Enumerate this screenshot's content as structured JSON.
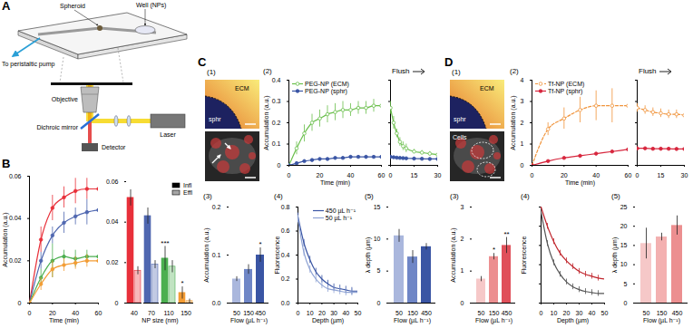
{
  "panel_labels": [
    "A",
    "B",
    "C",
    "D"
  ],
  "diagram": {
    "labels": {
      "spheroid": "Spheroid",
      "well": "Well (NPs)",
      "pump": "To peristaltic pump",
      "objective": "Objective",
      "mirror": "Dichroic mirror",
      "laser": "Laser",
      "detector": "Detector"
    }
  },
  "images": [
    {
      "title": "(1)",
      "top_labels": [
        "ECM",
        "sphr"
      ]
    },
    {
      "title": "(1)",
      "top_labels": [
        "ECM",
        "sphr"
      ],
      "bottom_labels": [
        "Cells"
      ]
    }
  ],
  "chart_data": [
    {
      "type": "line",
      "xlabel": "Time (min)",
      "ylabel": "Accumulation (a.u.)",
      "x": [
        0,
        10,
        20,
        30,
        40,
        50,
        60
      ],
      "xlim": [
        0,
        60
      ],
      "xticks": [
        0,
        20,
        40,
        60
      ],
      "ylim": [
        0,
        0.06
      ],
      "yticks": [
        0,
        0.02,
        0.04,
        0.06
      ],
      "series": [
        {
          "color": "#e8303a",
          "marker": "circle",
          "line_style": "solid",
          "values": [
            0,
            0.03,
            0.045,
            0.05,
            0.053,
            0.054,
            0.054
          ],
          "errors": [
            0,
            0.006,
            0.006,
            0.005,
            0.006,
            0.005,
            0.005
          ]
        },
        {
          "color": "#4f67b0",
          "marker": "circle",
          "line_style": "solid",
          "values": [
            0,
            0.02,
            0.032,
            0.038,
            0.041,
            0.043,
            0.044
          ],
          "errors": [
            0,
            0.004,
            0.004,
            0.005,
            0.004,
            0.006,
            0.005
          ]
        },
        {
          "color": "#4caf50",
          "marker": "circle",
          "line_style": "solid",
          "values": [
            0,
            0.012,
            0.02,
            0.022,
            0.021,
            0.022,
            0.022
          ],
          "errors": [
            0,
            0.004,
            0.008,
            0.003,
            0.004,
            0.003,
            0.004
          ]
        },
        {
          "color": "#f39c34",
          "marker": "circle",
          "line_style": "solid",
          "values": [
            0,
            0.009,
            0.016,
            0.018,
            0.019,
            0.02,
            0.02
          ],
          "errors": [
            0,
            0.003,
            0.004,
            0.003,
            0.003,
            0.003,
            0.003
          ]
        }
      ]
    },
    {
      "type": "bar",
      "xlabel": "NP size (nm)",
      "categories": [
        "40",
        "70",
        "110",
        "150"
      ],
      "colors": [
        "#e8303a",
        "#4f67b0",
        "#4caf50",
        "#f39c34"
      ],
      "ylim": [
        0,
        0.06
      ],
      "yticks": [
        0,
        0.02,
        0.04,
        0.06
      ],
      "legend": "top-right",
      "series": [
        {
          "name": "Infl",
          "color": "#000000",
          "values": [
            0.052,
            0.043,
            0.022,
            0.005
          ],
          "errors": [
            0.004,
            0.004,
            0.006,
            0.003
          ]
        },
        {
          "name": "Effl",
          "color": "#000000",
          "values": [
            0.016,
            0.019,
            0.018,
            0.001
          ],
          "errors": [
            0.002,
            0.002,
            0.003,
            0.001
          ]
        }
      ],
      "annotations": [
        {
          "category": "110",
          "series": "Infl",
          "text": "***"
        },
        {
          "category": "150",
          "series": "Infl",
          "text": "*"
        }
      ]
    },
    {
      "type": "line",
      "title": "(2)",
      "xlabel": "Time (min)",
      "ylabel": "Accumulation (a.u.)",
      "x": [
        0,
        5,
        10,
        15,
        20,
        25,
        30,
        35,
        40,
        45,
        50,
        55,
        60
      ],
      "xlim": [
        0,
        60
      ],
      "xticks": [
        0,
        20,
        40,
        60
      ],
      "ylim": [
        0,
        0.4
      ],
      "yticks": [
        0,
        0.1,
        0.2,
        0.3,
        0.4
      ],
      "legend": "top-left",
      "series": [
        {
          "name": "PEG-NP (ECM)",
          "color": "#6abf4b",
          "marker": "circle-open",
          "line_style": "solid",
          "values": [
            0,
            0.08,
            0.15,
            0.2,
            0.22,
            0.24,
            0.25,
            0.26,
            0.26,
            0.27,
            0.27,
            0.28,
            0.28
          ],
          "errors": [
            0,
            0.03,
            0.04,
            0.04,
            0.04,
            0.04,
            0.04,
            0.04,
            0.03,
            0.03,
            0.03,
            0.03,
            0.03
          ]
        },
        {
          "name": "PEG-NP (sphr)",
          "color": "#3a55a4",
          "marker": "circle",
          "line_style": "solid",
          "values": [
            0,
            0.01,
            0.02,
            0.025,
            0.03,
            0.03,
            0.035,
            0.035,
            0.04,
            0.04,
            0.04,
            0.04,
            0.04
          ],
          "errors": [
            0,
            0.005,
            0.005,
            0.005,
            0.005,
            0.005,
            0.005,
            0.005,
            0.005,
            0.005,
            0.005,
            0.005,
            0.005
          ]
        }
      ]
    },
    {
      "type": "line",
      "title": "Flush",
      "tick_labels": "x",
      "x": [
        0,
        2,
        4,
        6,
        8,
        10,
        15,
        20,
        25,
        30
      ],
      "xlim": [
        0,
        30
      ],
      "xticks": [
        0,
        15,
        30
      ],
      "ylim": [
        0,
        0.4
      ],
      "yticks": [
        0,
        0.1,
        0.2,
        0.3,
        0.4
      ],
      "series": [
        {
          "color": "#6abf4b",
          "marker": "circle-open",
          "line_style": "solid",
          "values": [
            0.27,
            0.2,
            0.15,
            0.11,
            0.09,
            0.08,
            0.065,
            0.06,
            0.055,
            0.05
          ],
          "errors": [
            0.03,
            0.03,
            0.02,
            0.02,
            0.02,
            0.02,
            0.01,
            0.01,
            0.01,
            0.01
          ]
        },
        {
          "color": "#3a55a4",
          "marker": "circle",
          "line_style": "solid",
          "values": [
            0.04,
            0.038,
            0.036,
            0.035,
            0.034,
            0.033,
            0.032,
            0.031,
            0.03,
            0.03
          ],
          "errors": [
            0.005,
            0.005,
            0.005,
            0.005,
            0.005,
            0.005,
            0.005,
            0.005,
            0.005,
            0.005
          ]
        }
      ]
    },
    {
      "type": "bar",
      "title": "(3)",
      "xlabel": "Flow (µL h⁻¹)",
      "ylabel": "Accumulation (a.u.)",
      "categories": [
        "50",
        "150",
        "450"
      ],
      "values": [
        0.05,
        0.07,
        0.1
      ],
      "errors": [
        0.005,
        0.01,
        0.015
      ],
      "colors": [
        "#aab7dd",
        "#6f86c6",
        "#3a55a4"
      ],
      "ylim": [
        0,
        0.2
      ],
      "yticks": [
        {
          "value": 0,
          "label": "0.0"
        },
        0.1,
        0.2
      ],
      "annotations": [
        {
          "category": "450",
          "text": "*"
        }
      ]
    },
    {
      "type": "line",
      "title": "(4)",
      "xlabel": "Depth (µm)",
      "ylabel": "Fluorescence",
      "x": [
        0,
        5,
        10,
        15,
        20,
        25,
        30,
        35,
        40,
        45,
        50
      ],
      "xlim": [
        0,
        50
      ],
      "xticks": [
        0,
        10,
        20,
        30,
        40,
        50
      ],
      "ylim": [
        0,
        0.8
      ],
      "yticks": [
        {
          "value": 0,
          "label": "0.0"
        },
        0.2,
        0.4,
        0.6,
        0.8
      ],
      "legend": "top-right",
      "series": [
        {
          "name": "450 µL h⁻¹",
          "color": "#3a55a4",
          "line_style": "solid",
          "values": [
            0.72,
            0.5,
            0.36,
            0.26,
            0.2,
            0.16,
            0.13,
            0.12,
            0.11,
            0.1,
            0.1
          ],
          "errors": [
            0.03,
            0.03,
            0.03,
            0.03,
            0.03,
            0.03,
            0.03,
            0.03,
            0.03,
            0.03,
            0.03
          ]
        },
        {
          "name": "50 µL h⁻¹",
          "color": "#8fa3d4",
          "line_style": "solid",
          "values": [
            0.7,
            0.42,
            0.28,
            0.2,
            0.15,
            0.12,
            0.11,
            0.1,
            0.09,
            0.09,
            0.09
          ],
          "errors": [
            0.03,
            0.03,
            0.03,
            0.03,
            0.03,
            0.03,
            0.03,
            0.03,
            0.03,
            0.03,
            0.03
          ]
        }
      ]
    },
    {
      "type": "bar",
      "title": "(5)",
      "xlabel": "Flow (µL h⁻¹)",
      "ylabel": "λ depth (µm)",
      "categories": [
        "50",
        "150",
        "450"
      ],
      "values": [
        10.5,
        7.2,
        8.8
      ],
      "errors": [
        1,
        1,
        0.5
      ],
      "colors": [
        "#aab7dd",
        "#6f86c6",
        "#3a55a4"
      ],
      "ylim": [
        0,
        15
      ],
      "yticks": [
        0,
        5,
        10,
        15
      ]
    },
    {
      "type": "line",
      "title": "(2)",
      "xlabel": "Time (min)",
      "ylabel": "Accumulation (a.u.)",
      "x": [
        0,
        10,
        20,
        30,
        40,
        50,
        60
      ],
      "xlim": [
        0,
        60
      ],
      "xticks": [
        0,
        20,
        40,
        60
      ],
      "ylim": [
        0,
        4
      ],
      "yticks": [
        0,
        1,
        2,
        3,
        4
      ],
      "legend": "top-left",
      "series": [
        {
          "name": "Tf-NP (ECM)",
          "color": "#f0933a",
          "marker": "circle-open",
          "line_style": "dashed",
          "values": [
            0,
            1.7,
            2.2,
            2.6,
            2.8,
            2.8,
            2.8
          ],
          "errors": [
            0,
            0.3,
            0.5,
            0.6,
            0.7,
            0.8,
            0.8
          ]
        },
        {
          "name": "Tf-NP (sphr)",
          "color": "#d7263d",
          "marker": "circle",
          "line_style": "solid",
          "values": [
            0,
            0.2,
            0.35,
            0.45,
            0.55,
            0.65,
            0.75
          ],
          "errors": [
            0,
            0.05,
            0.05,
            0.05,
            0.05,
            0.06,
            0.08
          ]
        }
      ]
    },
    {
      "type": "line",
      "title": "Flush",
      "tick_labels": "x",
      "x": [
        0,
        5,
        10,
        15,
        20,
        25,
        30
      ],
      "xlim": [
        0,
        30
      ],
      "xticks": [
        0,
        15,
        30
      ],
      "ylim": [
        0,
        4
      ],
      "yticks": [
        0,
        1,
        2,
        3,
        4
      ],
      "series": [
        {
          "color": "#f0933a",
          "marker": "circle-open",
          "line_style": "dashed",
          "values": [
            2.7,
            2.6,
            2.5,
            2.45,
            2.4,
            2.4,
            2.35
          ],
          "errors": [
            0.2,
            0.2,
            0.2,
            0.2,
            0.2,
            0.2,
            0.2
          ]
        },
        {
          "color": "#d7263d",
          "marker": "circle",
          "line_style": "solid",
          "values": [
            0.8,
            0.8,
            0.78,
            0.78,
            0.78,
            0.77,
            0.77
          ],
          "errors": [
            0.05,
            0.05,
            0.05,
            0.05,
            0.05,
            0.05,
            0.05
          ]
        }
      ]
    },
    {
      "type": "bar",
      "title": "(3)",
      "xlabel": "Flow (µL h⁻¹)",
      "ylabel": "Accumulation (a.u.)",
      "categories": [
        "50",
        "150",
        "450"
      ],
      "values": [
        0.75,
        1.45,
        1.8
      ],
      "errors": [
        0.08,
        0.1,
        0.25
      ],
      "colors": [
        "#f6c8c8",
        "#ec8f90",
        "#e0505a"
      ],
      "ylim": [
        0,
        3
      ],
      "yticks": [
        0,
        1,
        2,
        3
      ],
      "annotations": [
        {
          "category": "150",
          "text": "*"
        },
        {
          "category": "450",
          "text": "**"
        }
      ]
    },
    {
      "type": "line",
      "title": "(4)",
      "xlabel": "Depth (µm)",
      "ylabel": "Fluorescence",
      "tick_labels": "x",
      "x": [
        0,
        5,
        10,
        15,
        20,
        25,
        30,
        35,
        40,
        45,
        50
      ],
      "xlim": [
        0,
        50
      ],
      "xticks": [
        0,
        10,
        20,
        30,
        40,
        50
      ],
      "ylim": [
        0,
        1
      ],
      "yticks": [
        0,
        0.2,
        0.4,
        0.6,
        0.8,
        1
      ],
      "series": [
        {
          "color": "#c0262d",
          "line_style": "solid",
          "values": [
            1,
            0.8,
            0.64,
            0.52,
            0.44,
            0.38,
            0.33,
            0.3,
            0.28,
            0.26,
            0.25
          ],
          "errors": [
            0.03,
            0.03,
            0.03,
            0.03,
            0.03,
            0.03,
            0.03,
            0.03,
            0.03,
            0.03,
            0.03
          ]
        },
        {
          "color": "#555555",
          "line_style": "solid",
          "values": [
            0.95,
            0.62,
            0.42,
            0.3,
            0.22,
            0.17,
            0.14,
            0.12,
            0.11,
            0.1,
            0.1
          ],
          "errors": [
            0.03,
            0.03,
            0.03,
            0.03,
            0.03,
            0.03,
            0.03,
            0.03,
            0.03,
            0.03,
            0.03
          ]
        }
      ]
    },
    {
      "type": "bar",
      "title": "(5)",
      "xlabel": "Flow (µL h⁻¹)",
      "ylabel": "λ depth (µm)",
      "categories": [
        "50",
        "150",
        "450"
      ],
      "values": [
        15.5,
        17.2,
        20.2
      ],
      "errors": [
        4,
        1,
        2.5
      ],
      "colors": [
        "#f6c8c8",
        "#f3b0b0",
        "#ec8f90"
      ],
      "ylim": [
        0,
        25
      ],
      "yticks": [
        0,
        5,
        10,
        15,
        20,
        25
      ]
    }
  ]
}
